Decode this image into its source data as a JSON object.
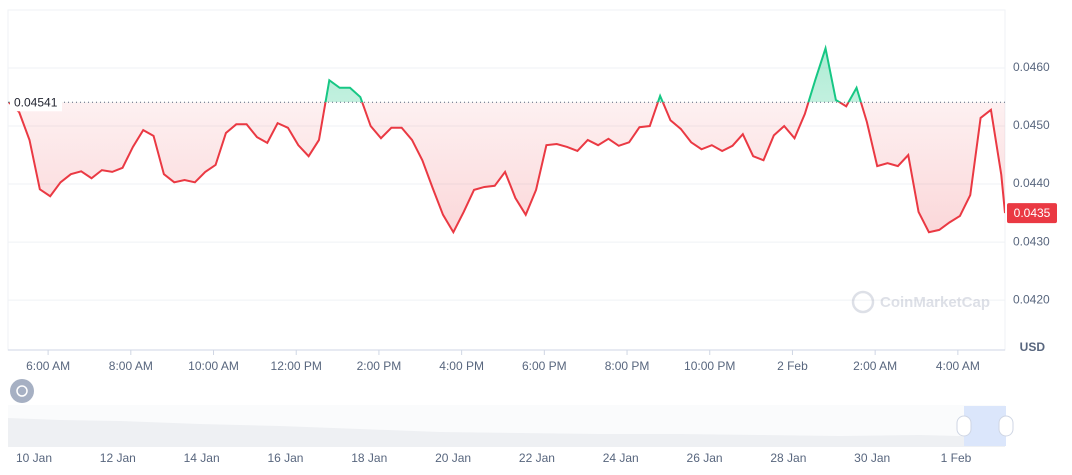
{
  "chart_data": {
    "type": "line",
    "x": [
      5.05,
      5.3,
      5.55,
      5.8,
      6.05,
      6.3,
      6.55,
      6.8,
      7.05,
      7.3,
      7.55,
      7.8,
      8.05,
      8.3,
      8.55,
      8.8,
      9.05,
      9.3,
      9.55,
      9.8,
      10.05,
      10.3,
      10.55,
      10.8,
      11.05,
      11.3,
      11.55,
      11.8,
      12.05,
      12.3,
      12.55,
      12.8,
      13.05,
      13.3,
      13.55,
      13.8,
      14.05,
      14.3,
      14.55,
      14.8,
      15.05,
      15.3,
      15.55,
      15.8,
      16.05,
      16.3,
      16.55,
      16.8,
      17.05,
      17.3,
      17.55,
      17.8,
      18.05,
      18.3,
      18.55,
      18.8,
      19.05,
      19.3,
      19.55,
      19.8,
      20.05,
      20.3,
      20.55,
      20.8,
      21.05,
      21.3,
      21.55,
      21.8,
      22.05,
      22.3,
      22.55,
      22.8,
      23.05,
      23.3,
      23.55,
      23.8,
      24.05,
      24.3,
      24.55,
      24.8,
      25.05,
      25.3,
      25.55,
      25.8,
      26.05,
      26.3,
      26.55,
      26.8,
      27.05,
      27.3,
      27.55,
      27.8,
      28.05,
      28.3,
      28.55,
      28.8,
      29.05,
      29.14
    ],
    "values": [
      0.04541,
      0.04524,
      0.04476,
      0.04391,
      0.04379,
      0.04403,
      0.04417,
      0.04422,
      0.0441,
      0.04424,
      0.04421,
      0.04428,
      0.04464,
      0.04493,
      0.04483,
      0.04417,
      0.04403,
      0.04407,
      0.04403,
      0.04421,
      0.04433,
      0.04488,
      0.04503,
      0.04503,
      0.04481,
      0.04471,
      0.04505,
      0.04497,
      0.04467,
      0.04448,
      0.04476,
      0.04579,
      0.04566,
      0.04566,
      0.0455,
      0.045,
      0.04479,
      0.04497,
      0.04497,
      0.04476,
      0.04441,
      0.04393,
      0.04347,
      0.04317,
      0.04352,
      0.0439,
      0.04395,
      0.04397,
      0.04421,
      0.04376,
      0.04347,
      0.0439,
      0.04467,
      0.04469,
      0.04464,
      0.04457,
      0.04476,
      0.04467,
      0.04478,
      0.04466,
      0.04472,
      0.04498,
      0.045,
      0.04552,
      0.0451,
      0.04495,
      0.04472,
      0.0446,
      0.04467,
      0.04457,
      0.04466,
      0.04486,
      0.04448,
      0.04441,
      0.04484,
      0.045,
      0.04479,
      0.04521,
      0.04579,
      0.04634,
      0.04545,
      0.04534,
      0.04566,
      0.04507,
      0.04431,
      0.04436,
      0.04431,
      0.0445,
      0.04352,
      0.04317,
      0.04321,
      0.04334,
      0.04345,
      0.04381,
      0.04514,
      0.04528,
      0.04416,
      0.0435
    ],
    "baseline": 0.04541,
    "current_value": 0.0435,
    "color_up": "#16c784",
    "color_down": "#ea3943",
    "xlim": [
      5.03,
      29.14
    ],
    "xticks": [
      {
        "value": 6,
        "label": "6:00 AM"
      },
      {
        "value": 8,
        "label": "8:00 AM"
      },
      {
        "value": 10,
        "label": "10:00 AM"
      },
      {
        "value": 12,
        "label": "12:00 PM"
      },
      {
        "value": 14,
        "label": "2:00 PM"
      },
      {
        "value": 16,
        "label": "4:00 PM"
      },
      {
        "value": 18,
        "label": "6:00 PM"
      },
      {
        "value": 20,
        "label": "8:00 PM"
      },
      {
        "value": 22,
        "label": "10:00 PM"
      },
      {
        "value": 24,
        "label": "2 Feb"
      },
      {
        "value": 26,
        "label": "2:00 AM"
      },
      {
        "value": 28,
        "label": "4:00 AM"
      }
    ],
    "ylim": [
      0.04114,
      0.047
    ],
    "yticks": [
      {
        "value": 0.042,
        "label": "0.0420"
      },
      {
        "value": 0.043,
        "label": "0.0430"
      },
      {
        "value": 0.044,
        "label": "0.0440"
      },
      {
        "value": 0.045,
        "label": "0.0450"
      },
      {
        "value": 0.046,
        "label": "0.0460"
      }
    ],
    "y_unit": "USD",
    "watermark": "CoinMarketCap",
    "navigator_labels": [
      "10 Jan",
      "12 Jan",
      "14 Jan",
      "16 Jan",
      "18 Jan",
      "20 Jan",
      "22 Jan",
      "24 Jan",
      "26 Jan",
      "28 Jan",
      "30 Jan",
      "1 Feb"
    ]
  }
}
